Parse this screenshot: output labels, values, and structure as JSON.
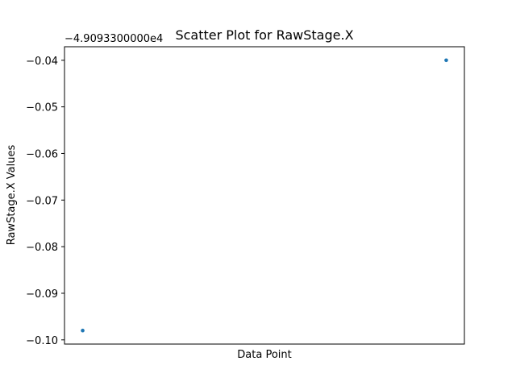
{
  "chart_data": {
    "type": "scatter",
    "title": "Scatter Plot for RawStage.X",
    "xlabel": "Data Point",
    "ylabel": "RawStage.X Values",
    "y_offset_label": "−4.9093300000e4",
    "y_offset_value": -49093.3,
    "x": [
      0,
      1
    ],
    "y": [
      -0.098,
      -0.04
    ],
    "xlim": [
      -0.05,
      1.05
    ],
    "ylim": [
      -0.1009,
      -0.0371
    ],
    "y_ticks": [
      -0.04,
      -0.05,
      -0.06,
      -0.07,
      -0.08,
      -0.09,
      -0.1
    ],
    "y_tick_labels": [
      "−0.04",
      "−0.05",
      "−0.06",
      "−0.07",
      "−0.08",
      "−0.09",
      "−0.10"
    ],
    "x_ticks_visible": false,
    "grid": false,
    "legend": "none",
    "colors": {
      "point": "#1f77b4",
      "axes": "#000000",
      "background": "#ffffff"
    }
  }
}
